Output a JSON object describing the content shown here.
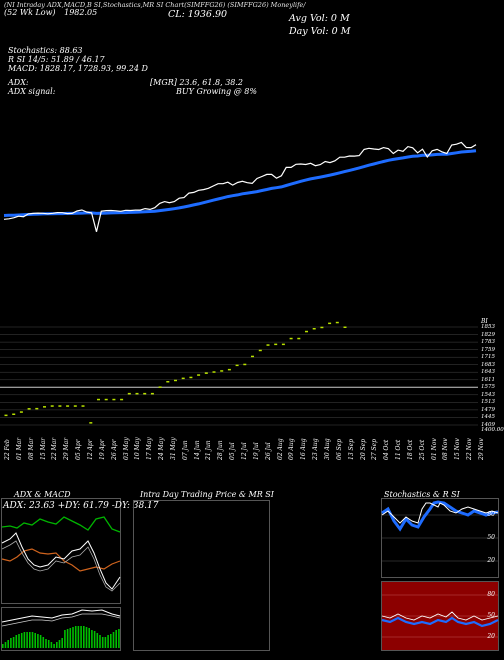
{
  "header": {
    "line1_left": "(52 Wk Low)",
    "line1_left2": "1982.05",
    "top_tabs": "(NI Intraday ADX,MACD,B  SI,Stochastics,MR  SI Chart(SIMFFG26) (SIMFFG26) Moneylife/",
    "close_label": "CL: 1936.90",
    "avg_vol": "Avg Vol: 0   M",
    "day_vol": "Day Vol: 0   M",
    "stochastics": "Stochastics: 88.63",
    "r_line": "R            SI 14/5: 51.89 / 46.17",
    "macd": "MACD: 1828.17,  1728.93,  99.24   D",
    "adx": "ADX:",
    "mgr": "[MGR] 23.6,  61.8,  38.2",
    "adx_signal": "ADX  signal:",
    "buy_growing": "BUY Growing @ 8%"
  },
  "price_scale": {
    "head": "BI",
    "labels": [
      "1853",
      "1829",
      "1783",
      "1759",
      "1715",
      "1683",
      "1643",
      "1611",
      "1575",
      "1543",
      "1513",
      "1479",
      "1445",
      "1409",
      "1400.00"
    ]
  },
  "date_labels": [
    "22 Feb",
    "01 Mar",
    "08 Mar",
    "15 Mar",
    "22 Mar",
    "29 Mar",
    "05 Apr",
    "12 Apr",
    "19 Apr",
    "26 Apr",
    "03 May",
    "10 May",
    "17 May",
    "24 May",
    "31 May",
    "07 Jun",
    "14 Jun",
    "21 Jun",
    "28 Jun",
    "05 Jul",
    "12 Jul",
    "19 Jul",
    "26 Jul",
    "02 Aug",
    "09 Aug",
    "16 Aug",
    "23 Aug",
    "30 Aug",
    "06 Sep",
    "13 Sep",
    "20 Sep",
    "27 Sep",
    "04 Oct",
    "11 Oct",
    "18 Oct",
    "25 Oct",
    "01 Nov",
    "08 Nov",
    "15 Nov",
    "22 Nov",
    "29 Nov"
  ],
  "panels": {
    "adx_title": "ADX  & MACD",
    "adx_values": "ADX: 23.63  +DY: 61.79  -DY: 38.17",
    "intraday_title": "Intra  Day Trading Price  & MR                SI",
    "stoch_title": "Stochastics & R                    SI",
    "stoch_ticks": [
      "80",
      "50",
      "20"
    ],
    "rsi_ticks": [
      "80",
      "50",
      "20"
    ]
  },
  "colors": {
    "price_line": "#ffffff",
    "ema_line": "#1e6cff",
    "volume_marks": "#b8e000",
    "pdi": "#00b400",
    "ndi": "#d0641e",
    "rsi_bg": "#8c0000"
  },
  "chart_data": [
    {
      "type": "line",
      "title": "",
      "series": [
        {
          "values": [
            1453,
            1456,
            1462,
            1471,
            1468,
            1484,
            1487,
            1489,
            1488,
            1485,
            1488,
            1492,
            1491,
            1486,
            1487,
            1501,
            1507,
            1495,
            1490,
            1381,
            1500,
            1503,
            1504,
            1502,
            1499,
            1505,
            1504,
            1506,
            1506,
            1515,
            1510,
            1520,
            1545,
            1555,
            1549,
            1555,
            1575,
            1578,
            1604,
            1608,
            1620,
            1624,
            1632,
            1645,
            1658,
            1658,
            1667,
            1650,
            1665,
            1672,
            1664,
            1660,
            1688,
            1700,
            1712,
            1712,
            1690,
            1704,
            1752,
            1752,
            1770,
            1772,
            1769,
            1776,
            1762,
            1768,
            1786,
            1780,
            1790,
            1811,
            1811,
            1818,
            1817,
            1820,
            1856,
            1862,
            1858,
            1855,
            1866,
            1860,
            1832,
            1852,
            1845,
            1872,
            1865,
            1836,
            1857,
            1812,
            1848,
            1856,
            1842,
            1832,
            1881,
            1886,
            1896,
            1867,
            1866,
            1883
          ]
        },
        {
          "values": [
            1475,
            1476,
            1477,
            1478,
            1479,
            1481,
            1482,
            1483,
            1484,
            1485,
            1485,
            1486,
            1486,
            1487,
            1487,
            1488,
            1489,
            1490,
            1490,
            1487,
            1488,
            1489,
            1490,
            1491,
            1492,
            1492,
            1493,
            1494,
            1495,
            1497,
            1498,
            1500,
            1503,
            1507,
            1510,
            1514,
            1519,
            1524,
            1530,
            1536,
            1542,
            1549,
            1556,
            1563,
            1570,
            1577,
            1584,
            1589,
            1594,
            1600,
            1604,
            1608,
            1613,
            1619,
            1625,
            1631,
            1635,
            1640,
            1648,
            1656,
            1664,
            1672,
            1679,
            1686,
            1691,
            1696,
            1702,
            1708,
            1714,
            1721,
            1728,
            1735,
            1742,
            1749,
            1757,
            1765,
            1772,
            1779,
            1786,
            1793,
            1798,
            1803,
            1807,
            1812,
            1816,
            1818,
            1822,
            1822,
            1824,
            1827,
            1828,
            1828,
            1832,
            1836,
            1841,
            1843,
            1845,
            1848
          ]
        }
      ],
      "ylim": [
        1380,
        1910
      ]
    },
    {
      "type": "scatter",
      "title": "",
      "x": [
        1,
        2,
        3,
        4,
        5,
        6,
        7,
        8,
        9,
        10,
        11,
        12,
        13,
        14,
        15,
        16,
        17,
        18,
        19,
        20,
        21,
        22,
        23,
        24,
        25,
        26,
        27,
        28,
        29,
        30,
        31,
        32,
        33,
        34,
        35,
        36,
        37,
        38,
        39,
        40,
        41,
        42,
        43,
        44,
        45
      ],
      "values": [
        1445,
        1450,
        1460,
        1475,
        1476,
        1484,
        1488,
        1488,
        1488,
        1488,
        1488,
        1410,
        1518,
        1518,
        1518,
        1518,
        1545,
        1545,
        1545,
        1545,
        1575,
        1600,
        1606,
        1616,
        1620,
        1631,
        1640,
        1645,
        1650,
        1656,
        1676,
        1680,
        1717,
        1745,
        1770,
        1773,
        1773,
        1800,
        1800,
        1832,
        1845,
        1851,
        1870,
        1874,
        1852
      ],
      "ylim": [
        1400,
        1853
      ]
    }
  ]
}
